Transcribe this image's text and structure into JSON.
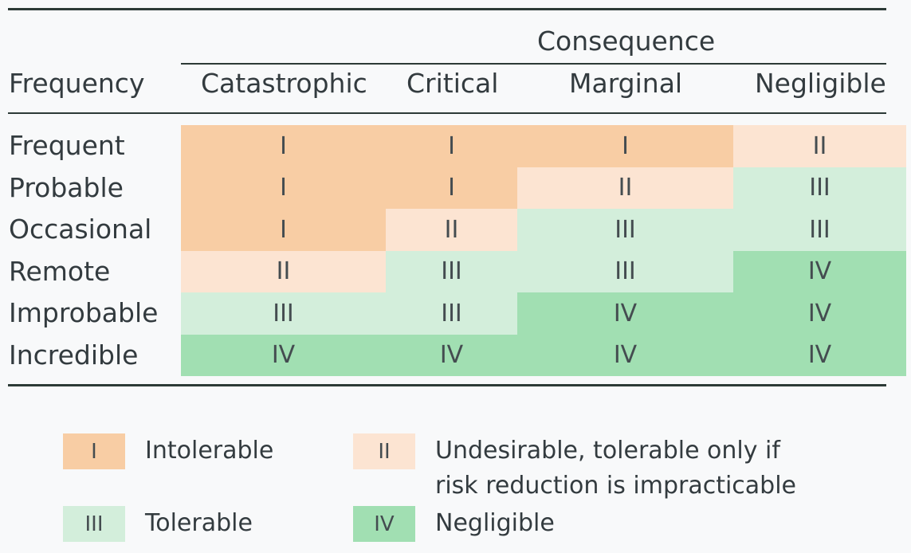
{
  "table": {
    "consequence_header": "Consequence",
    "frequency_header": "Frequency",
    "columns": [
      "Catastrophic",
      "Critical",
      "Marginal",
      "Negligible"
    ],
    "rows": [
      {
        "label": "Frequent",
        "cells": [
          "I",
          "I",
          "I",
          "II"
        ]
      },
      {
        "label": "Probable",
        "cells": [
          "I",
          "I",
          "II",
          "III"
        ]
      },
      {
        "label": "Occasional",
        "cells": [
          "I",
          "II",
          "III",
          "III"
        ]
      },
      {
        "label": "Remote",
        "cells": [
          "II",
          "III",
          "III",
          "IV"
        ]
      },
      {
        "label": "Improbable",
        "cells": [
          "III",
          "III",
          "IV",
          "IV"
        ]
      },
      {
        "label": "Incredible",
        "cells": [
          "IV",
          "IV",
          "IV",
          "IV"
        ]
      }
    ]
  },
  "colors": {
    "I": "#f8cda4",
    "II": "#fce4d2",
    "III": "#d3eedb",
    "IV": "#a1dfb2"
  },
  "legend": [
    {
      "code": "I",
      "text_lines": [
        "Intolerable"
      ]
    },
    {
      "code": "II",
      "text_lines": [
        "Undesirable, tolerable only if",
        "risk reduction is impracticable"
      ]
    },
    {
      "code": "III",
      "text_lines": [
        "Tolerable"
      ]
    },
    {
      "code": "IV",
      "text_lines": [
        "Negligible"
      ]
    }
  ]
}
